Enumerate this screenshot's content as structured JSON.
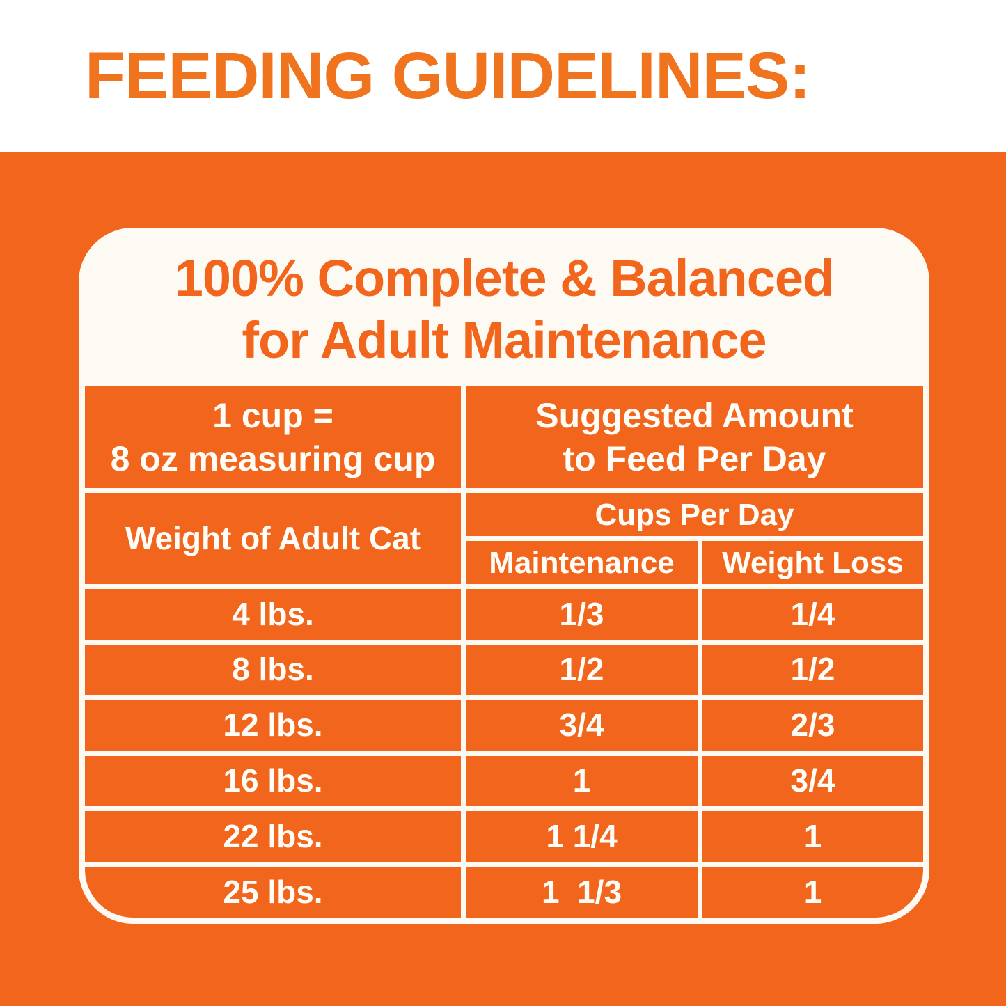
{
  "page": {
    "heading": "FEEDING GUIDELINES:",
    "colors": {
      "orange_background": "#f2651d",
      "heading_orange": "#f0731e",
      "table_text_white": "#fffdf8",
      "gridline_white": "#fdfaf4"
    }
  },
  "card": {
    "title_line1": "100% Complete & Balanced",
    "title_line2": "for Adult Maintenance",
    "table": {
      "cup_note": "1 cup =\n8 oz measuring cup",
      "suggested_amount": "Suggested Amount\nto Feed Per Day",
      "weight_header": "Weight of Adult Cat",
      "cups_per_day_header": "Cups Per Day",
      "maintenance_header": "Maintenance",
      "weight_loss_header": "Weight Loss",
      "rows": [
        {
          "weight": "4 lbs.",
          "maintenance": "1/3",
          "weight_loss": "1/4"
        },
        {
          "weight": "8 lbs.",
          "maintenance": "1/2",
          "weight_loss": "1/2"
        },
        {
          "weight": "12 lbs.",
          "maintenance": "3/4",
          "weight_loss": "2/3"
        },
        {
          "weight": "16 lbs.",
          "maintenance": "1",
          "weight_loss": "3/4"
        },
        {
          "weight": "22 lbs.",
          "maintenance": "1 1/4",
          "weight_loss": "1"
        },
        {
          "weight": "25 lbs.",
          "maintenance": "1  1/3",
          "weight_loss": "1"
        }
      ]
    }
  }
}
